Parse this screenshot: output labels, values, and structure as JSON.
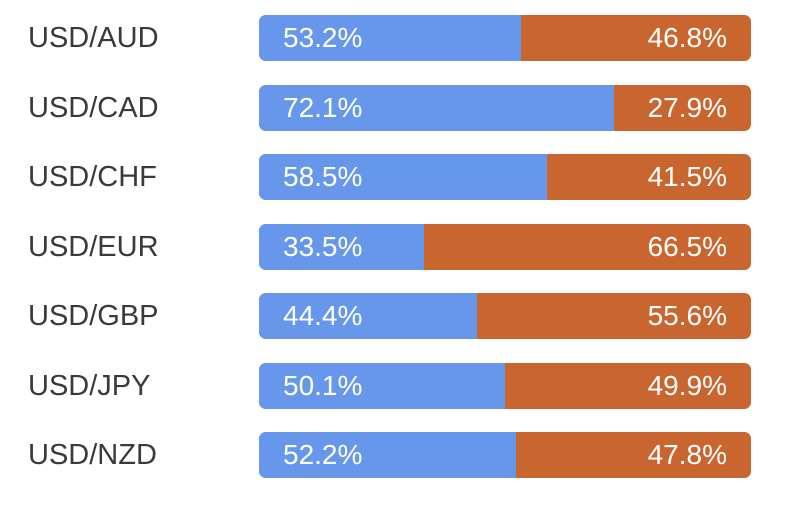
{
  "colors": {
    "long": "#6797ea",
    "short": "#c9652f",
    "label_text": "#3a3a3a",
    "value_text": "#ffffff"
  },
  "chart_data": {
    "type": "bar",
    "orientation": "horizontal",
    "stacked": true,
    "normalized": true,
    "categories": [
      "USD/AUD",
      "USD/CAD",
      "USD/CHF",
      "USD/EUR",
      "USD/GBP",
      "USD/JPY",
      "USD/NZD"
    ],
    "series": [
      {
        "color": "#6797ea",
        "values": [
          53.2,
          72.1,
          58.5,
          33.5,
          44.4,
          50.1,
          52.2
        ],
        "labels": [
          "53.2%",
          "72.1%",
          "58.5%",
          "33.5%",
          "44.4%",
          "50.1%",
          "52.2%"
        ]
      },
      {
        "color": "#c9652f",
        "values": [
          46.8,
          27.9,
          41.5,
          66.5,
          55.6,
          49.9,
          47.8
        ],
        "labels": [
          "46.8%",
          "27.9%",
          "41.5%",
          "66.5%",
          "55.6%",
          "49.9%",
          "47.8%"
        ]
      }
    ],
    "xlim": [
      0,
      100
    ],
    "grid": false
  }
}
